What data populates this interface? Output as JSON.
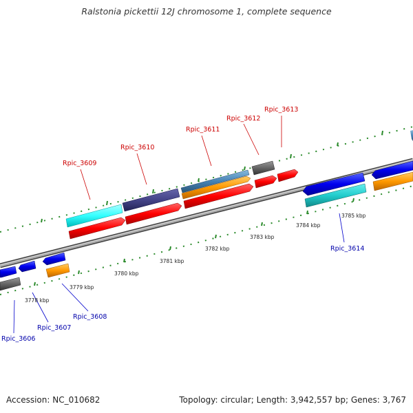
{
  "title": "Ralstonia pickettii 12J chromosome 1, complete sequence",
  "accession": "Accession: NC_010682",
  "genome_info": "Topology: circular; Length: 3,942,557 bp; Genes: 3,767",
  "colors": {
    "forward_gene": "#ff0000",
    "reverse_gene": "#0000ff",
    "gene_label_top": "#cc0000",
    "gene_label_bottom": "#0000aa",
    "tick": "#228822",
    "backbone": "#777777",
    "cyan": "#33ffff",
    "slate": "#444488",
    "steel_blue": "#4682b4",
    "orange": "#ff9900",
    "gray": "#666666"
  },
  "scale_labels": [
    "3778 kbp",
    "3779 kbp",
    "3780 kbp",
    "3781 kbp",
    "3782 kbp",
    "3783 kbp",
    "3784 kbp",
    "3785 kbp"
  ],
  "gene_labels_top": [
    "Rpic_3609",
    "Rpic_3610",
    "Rpic_3611",
    "Rpic_3612",
    "Rpic_3613"
  ],
  "gene_labels_bottom": [
    "Rpic_3606",
    "Rpic_3607",
    "Rpic_3608",
    "Rpic_3614"
  ]
}
